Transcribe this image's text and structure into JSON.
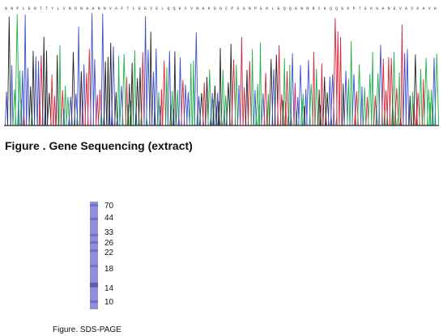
{
  "figures": [
    {
      "id": "gene-sequencing",
      "caption": "Figure . Gene Sequencing (extract)",
      "colors": {
        "A": "#22b14c",
        "C": "#3d4fc9",
        "G": "#222222",
        "T": "#d6263b",
        "baseline": "#2a2a2a"
      },
      "base_letters": "NNPLENTTYLVNDNAANNVAFTLEGVELQQKFVNAKDGCPSGNPEKLEQQGNNRCKQQGKPTEKGANEVAVKAVH"
    },
    {
      "id": "sds-page",
      "caption": "Figure. SDS-PAGE",
      "colors": {
        "lane": "#8e8fd8",
        "band": "#5b5cb8"
      },
      "markers": [
        "70",
        "44",
        "33",
        "26",
        "22",
        "18",
        "14",
        "10"
      ]
    }
  ]
}
